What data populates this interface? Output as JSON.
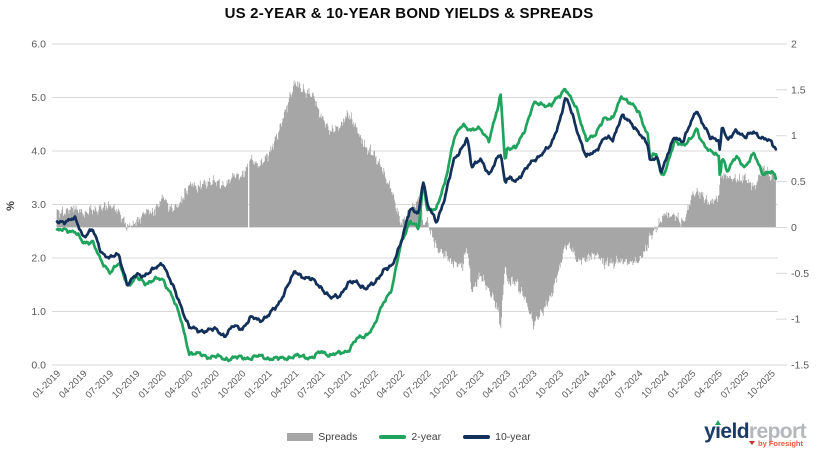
{
  "title": "US 2-YEAR & 10-YEAR BOND YIELDS & SPREADS",
  "colors": {
    "spread_bar": "#a6a6a6",
    "two_year": "#1fa35d",
    "ten_year": "#13305a",
    "gridline": "#d9d9d9",
    "axis_text": "#595959",
    "title_text": "#0a0a0a"
  },
  "chart_data": {
    "type": "bar",
    "subtype": "combo-line-bar",
    "title": "US 2-YEAR & 10-YEAR BOND YIELDS & SPREADS",
    "xlabel": "",
    "ylabel": "%",
    "grid": "horizontal",
    "legend_position": "bottom",
    "x_unit": "months since 2019-01",
    "x_range": [
      0,
      81.5
    ],
    "left_axis": {
      "label": "%",
      "range": [
        0,
        6
      ],
      "ticks": [
        "6.0",
        "5.0",
        "4.0",
        "3.0",
        "2.0",
        "1.0",
        "0.0"
      ]
    },
    "right_axis": {
      "range": [
        -1.5,
        2
      ],
      "ticks": [
        "2",
        "1.5",
        "1",
        "0.5",
        "0",
        "-0.5",
        "-1",
        "-1.5"
      ]
    },
    "x_ticks": [
      "01-2019",
      "04-2019",
      "07-2019",
      "10-2019",
      "01-2020",
      "04-2020",
      "07-2020",
      "10-2020",
      "01-2021",
      "04-2021",
      "07-2021",
      "10-2021",
      "01-2022",
      "04-2022",
      "07-2022",
      "10-2022",
      "01-2023",
      "04-2023",
      "07-2023",
      "10-2023",
      "01-2024",
      "04-2024",
      "07-2024",
      "10-2024",
      "01-2025",
      "04-2025",
      "07-2025",
      "10-2025"
    ],
    "series": [
      {
        "name": "Spreads",
        "type": "bar",
        "axis": "right",
        "color": "#a6a6a6",
        "derived": "10-year minus 2-year yield (percentage points)",
        "key_points": [
          [
            0,
            0.16
          ],
          [
            8,
            0.0
          ],
          [
            15,
            0.47
          ],
          [
            24,
            0.8
          ],
          [
            27,
            1.58
          ],
          [
            33,
            1.24
          ],
          [
            39,
            0.04
          ],
          [
            43,
            -0.22
          ],
          [
            48,
            -0.53
          ],
          [
            50.3,
            -1.09
          ],
          [
            54,
            -1.06
          ],
          [
            60,
            -0.35
          ],
          [
            66,
            -0.35
          ],
          [
            68,
            0.0
          ],
          [
            72,
            0.34
          ],
          [
            76,
            0.55
          ],
          [
            81.5,
            0.57
          ]
        ]
      },
      {
        "name": "2-year",
        "type": "line",
        "axis": "left",
        "color": "#1fa35d",
        "anchors": [
          [
            0,
            2.5
          ],
          [
            1,
            2.53
          ],
          [
            2,
            2.5
          ],
          [
            3,
            2.27
          ],
          [
            4,
            2.33
          ],
          [
            5,
            1.92
          ],
          [
            6,
            1.75
          ],
          [
            7,
            1.89
          ],
          [
            8,
            1.5
          ],
          [
            9,
            1.63
          ],
          [
            10,
            1.52
          ],
          [
            11,
            1.61
          ],
          [
            12,
            1.58
          ],
          [
            13,
            1.33
          ],
          [
            14,
            0.86
          ],
          [
            15,
            0.23
          ],
          [
            16,
            0.2
          ],
          [
            17,
            0.16
          ],
          [
            18,
            0.16
          ],
          [
            19,
            0.11
          ],
          [
            20,
            0.14
          ],
          [
            21,
            0.13
          ],
          [
            22,
            0.14
          ],
          [
            23,
            0.16
          ],
          [
            24,
            0.13
          ],
          [
            25,
            0.11
          ],
          [
            26,
            0.14
          ],
          [
            27,
            0.16
          ],
          [
            28,
            0.16
          ],
          [
            29,
            0.14
          ],
          [
            30,
            0.25
          ],
          [
            31,
            0.19
          ],
          [
            32,
            0.21
          ],
          [
            33,
            0.28
          ],
          [
            34,
            0.48
          ],
          [
            35,
            0.56
          ],
          [
            36,
            0.73
          ],
          [
            37,
            1.18
          ],
          [
            38,
            1.44
          ],
          [
            39,
            2.28
          ],
          [
            40,
            2.7
          ],
          [
            41,
            2.53
          ],
          [
            41.5,
            3.43
          ],
          [
            42,
            2.92
          ],
          [
            43,
            2.89
          ],
          [
            44,
            3.45
          ],
          [
            45,
            4.22
          ],
          [
            46,
            4.51
          ],
          [
            47,
            4.38
          ],
          [
            48,
            4.41
          ],
          [
            49,
            4.21
          ],
          [
            50,
            4.81
          ],
          [
            50.3,
            5.06
          ],
          [
            50.8,
            3.77
          ],
          [
            51,
            4.06
          ],
          [
            52,
            4.04
          ],
          [
            53,
            4.4
          ],
          [
            54,
            4.87
          ],
          [
            55,
            4.88
          ],
          [
            56,
            4.85
          ],
          [
            57,
            5.03
          ],
          [
            57.6,
            5.19
          ],
          [
            58,
            5.07
          ],
          [
            59,
            4.73
          ],
          [
            60,
            4.23
          ],
          [
            61,
            4.27
          ],
          [
            62,
            4.64
          ],
          [
            63,
            4.59
          ],
          [
            64,
            5.04
          ],
          [
            65,
            4.89
          ],
          [
            66,
            4.71
          ],
          [
            67,
            4.29
          ],
          [
            67.2,
            3.9
          ],
          [
            68,
            3.91
          ],
          [
            68.5,
            3.55
          ],
          [
            69,
            3.66
          ],
          [
            70,
            4.16
          ],
          [
            71,
            4.13
          ],
          [
            72,
            4.24
          ],
          [
            72.5,
            4.4
          ],
          [
            73,
            4.22
          ],
          [
            74,
            3.99
          ],
          [
            75,
            3.89
          ],
          [
            75.15,
            3.5
          ],
          [
            75.4,
            3.92
          ],
          [
            76,
            3.62
          ],
          [
            77,
            3.89
          ],
          [
            78,
            3.71
          ],
          [
            79,
            3.94
          ],
          [
            80,
            3.59
          ],
          [
            81,
            3.6
          ],
          [
            81.5,
            3.48
          ]
        ]
      },
      {
        "name": "10-year",
        "type": "line",
        "axis": "left",
        "color": "#13305a",
        "anchors": [
          [
            0,
            2.66
          ],
          [
            1,
            2.7
          ],
          [
            2,
            2.73
          ],
          [
            3,
            2.41
          ],
          [
            4,
            2.53
          ],
          [
            5,
            2.12
          ],
          [
            6,
            2.0
          ],
          [
            7,
            2.06
          ],
          [
            8,
            1.5
          ],
          [
            9,
            1.68
          ],
          [
            10,
            1.69
          ],
          [
            11,
            1.78
          ],
          [
            12,
            1.92
          ],
          [
            13,
            1.51
          ],
          [
            14,
            1.13
          ],
          [
            15,
            0.7
          ],
          [
            16,
            0.64
          ],
          [
            17,
            0.65
          ],
          [
            18,
            0.66
          ],
          [
            19,
            0.55
          ],
          [
            20,
            0.72
          ],
          [
            21,
            0.69
          ],
          [
            22,
            0.88
          ],
          [
            23,
            0.84
          ],
          [
            24,
            0.93
          ],
          [
            25,
            1.11
          ],
          [
            26,
            1.44
          ],
          [
            27,
            1.74
          ],
          [
            28,
            1.65
          ],
          [
            29,
            1.58
          ],
          [
            30,
            1.45
          ],
          [
            31,
            1.24
          ],
          [
            32,
            1.3
          ],
          [
            33,
            1.52
          ],
          [
            34,
            1.55
          ],
          [
            35,
            1.43
          ],
          [
            36,
            1.52
          ],
          [
            37,
            1.79
          ],
          [
            38,
            1.83
          ],
          [
            39,
            2.32
          ],
          [
            40,
            2.89
          ],
          [
            41,
            2.85
          ],
          [
            41.5,
            3.48
          ],
          [
            42,
            2.98
          ],
          [
            43,
            2.67
          ],
          [
            44,
            3.15
          ],
          [
            45,
            3.83
          ],
          [
            46,
            4.1
          ],
          [
            46.5,
            4.24
          ],
          [
            47,
            3.68
          ],
          [
            48,
            3.88
          ],
          [
            49,
            3.52
          ],
          [
            50,
            3.92
          ],
          [
            50.3,
            3.97
          ],
          [
            50.8,
            3.38
          ],
          [
            51,
            3.48
          ],
          [
            52,
            3.44
          ],
          [
            53,
            3.64
          ],
          [
            54,
            3.81
          ],
          [
            55,
            3.97
          ],
          [
            56,
            4.09
          ],
          [
            57,
            4.59
          ],
          [
            57.6,
            4.98
          ],
          [
            58,
            4.88
          ],
          [
            59,
            4.37
          ],
          [
            60,
            3.88
          ],
          [
            61,
            3.99
          ],
          [
            62,
            4.25
          ],
          [
            63,
            4.2
          ],
          [
            64,
            4.68
          ],
          [
            65,
            4.51
          ],
          [
            66,
            4.36
          ],
          [
            67,
            4.09
          ],
          [
            67.2,
            3.79
          ],
          [
            68,
            3.91
          ],
          [
            68.5,
            3.62
          ],
          [
            69,
            3.81
          ],
          [
            70,
            4.28
          ],
          [
            71,
            4.18
          ],
          [
            72,
            4.58
          ],
          [
            72.5,
            4.79
          ],
          [
            73,
            4.58
          ],
          [
            74,
            4.24
          ],
          [
            75,
            4.23
          ],
          [
            75.15,
            4.01
          ],
          [
            75.4,
            4.49
          ],
          [
            76,
            4.17
          ],
          [
            77,
            4.41
          ],
          [
            78,
            4.24
          ],
          [
            79,
            4.37
          ],
          [
            80,
            4.23
          ],
          [
            81,
            4.16
          ],
          [
            81.5,
            4.05
          ]
        ]
      }
    ]
  },
  "legend": {
    "items": [
      {
        "label": "Spreads"
      },
      {
        "label": "2-year"
      },
      {
        "label": "10-year"
      }
    ]
  },
  "logo": {
    "word1": "yield",
    "word2": "report",
    "tagline": "by Foresight"
  }
}
